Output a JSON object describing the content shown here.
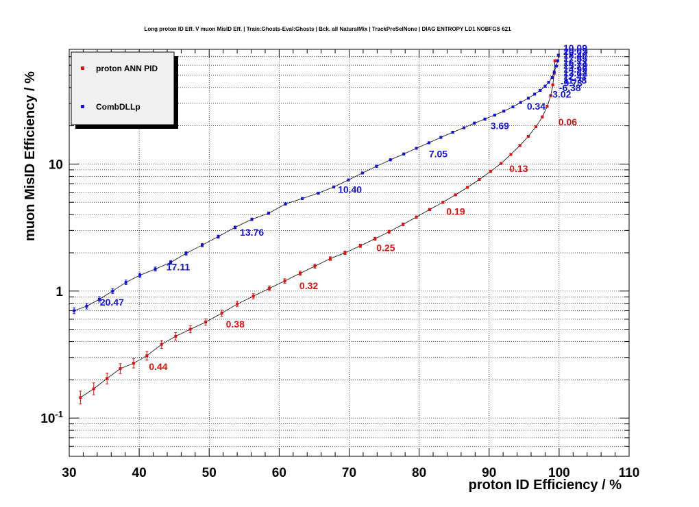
{
  "chart_data": {
    "type": "line",
    "title": "Long proton ID Eff. V muon MisID Eff. | Train:Ghosts-Eval:Ghosts | Bck. all NaturalMix | TrackPreSelNone | DIAG ENTROPY LD1 NOBFGS 621",
    "xlabel": "proton ID Efficiency / %",
    "ylabel": "muon MisID Efficiency / %",
    "xlim": [
      30,
      110
    ],
    "ylim": [
      0.05,
      80
    ],
    "y_scale": "log",
    "grid": true,
    "legend_position": "top-left",
    "x_ticks": [
      "30",
      "40",
      "50",
      "60",
      "70",
      "80",
      "90",
      "100",
      "110"
    ],
    "y_ticks": [
      {
        "value": 0.1,
        "base": "10",
        "exp": "-1"
      },
      {
        "value": 1,
        "base": "1",
        "exp": ""
      },
      {
        "value": 10,
        "base": "10",
        "exp": ""
      }
    ],
    "series": [
      {
        "name": "proton ANN PID",
        "color": "#e01010",
        "points": [
          [
            31.6,
            0.145
          ],
          [
            33.5,
            0.17
          ],
          [
            35.4,
            0.205
          ],
          [
            37.3,
            0.245
          ],
          [
            39.2,
            0.27
          ],
          [
            41.1,
            0.31
          ],
          [
            43.2,
            0.38
          ],
          [
            45.2,
            0.44
          ],
          [
            47.3,
            0.5
          ],
          [
            49.5,
            0.57
          ],
          [
            51.8,
            0.67
          ],
          [
            54.0,
            0.79
          ],
          [
            56.3,
            0.91
          ],
          [
            58.6,
            1.05
          ],
          [
            60.8,
            1.2
          ],
          [
            63.0,
            1.38
          ],
          [
            65.1,
            1.57
          ],
          [
            67.3,
            1.8
          ],
          [
            69.4,
            2.0
          ],
          [
            71.6,
            2.27
          ],
          [
            73.7,
            2.58
          ],
          [
            75.7,
            2.93
          ],
          [
            77.7,
            3.35
          ],
          [
            79.6,
            3.82
          ],
          [
            81.5,
            4.38
          ],
          [
            83.4,
            5.0
          ],
          [
            85.2,
            5.72
          ],
          [
            86.9,
            6.55
          ],
          [
            88.6,
            7.55
          ],
          [
            90.2,
            8.75
          ],
          [
            91.7,
            10.1
          ],
          [
            93.1,
            11.9
          ],
          [
            94.4,
            14.0
          ],
          [
            95.6,
            16.5
          ],
          [
            96.7,
            19.7
          ],
          [
            97.6,
            23.5
          ],
          [
            98.3,
            28.5
          ],
          [
            98.8,
            34.5
          ],
          [
            99.1,
            42.0
          ],
          [
            99.3,
            52.0
          ],
          [
            99.4,
            65.0
          ]
        ]
      },
      {
        "name": "CombDLLp",
        "color": "#1010e0",
        "points": [
          [
            30.7,
            0.7
          ],
          [
            32.5,
            0.76
          ],
          [
            34.3,
            0.86
          ],
          [
            36.2,
            1.0
          ],
          [
            38.1,
            1.17
          ],
          [
            40.1,
            1.33
          ],
          [
            42.3,
            1.49
          ],
          [
            44.5,
            1.68
          ],
          [
            46.7,
            1.98
          ],
          [
            49.0,
            2.3
          ],
          [
            51.3,
            2.68
          ],
          [
            53.7,
            3.17
          ],
          [
            56.1,
            3.67
          ],
          [
            58.5,
            4.1
          ],
          [
            60.9,
            4.85
          ],
          [
            63.3,
            5.35
          ],
          [
            65.6,
            5.9
          ],
          [
            67.8,
            6.6
          ],
          [
            69.9,
            7.5
          ],
          [
            71.9,
            8.5
          ],
          [
            73.9,
            9.6
          ],
          [
            75.9,
            10.8
          ],
          [
            77.8,
            12.0
          ],
          [
            79.6,
            13.3
          ],
          [
            81.4,
            14.7
          ],
          [
            83.1,
            16.2
          ],
          [
            84.8,
            17.8
          ],
          [
            86.4,
            19.3
          ],
          [
            87.9,
            21.0
          ],
          [
            89.4,
            22.6
          ],
          [
            90.8,
            24.3
          ],
          [
            92.1,
            26.1
          ],
          [
            93.4,
            28.2
          ],
          [
            94.5,
            30.5
          ],
          [
            95.6,
            33.0
          ],
          [
            96.5,
            35.5
          ],
          [
            97.3,
            38.0
          ],
          [
            98.0,
            41.0
          ],
          [
            98.5,
            44.0
          ],
          [
            99.0,
            48.0
          ],
          [
            99.3,
            53.0
          ],
          [
            99.6,
            59.0
          ],
          [
            99.8,
            65.0
          ],
          [
            99.9,
            72.0
          ]
        ]
      }
    ],
    "annotations": [
      {
        "series": 0,
        "text": "0.06",
        "x": 99.5,
        "y": 21.5
      },
      {
        "series": 0,
        "text": "0.13",
        "x": 92.5,
        "y": 9.2
      },
      {
        "series": 0,
        "text": "0.19",
        "x": 83.5,
        "y": 4.25
      },
      {
        "series": 0,
        "text": "0.25",
        "x": 73.5,
        "y": 2.2
      },
      {
        "series": 0,
        "text": "0.32",
        "x": 62.5,
        "y": 1.1
      },
      {
        "series": 0,
        "text": "0.38",
        "x": 52.0,
        "y": 0.55
      },
      {
        "series": 0,
        "text": "0.44",
        "x": 41.0,
        "y": 0.255
      },
      {
        "series": 1,
        "text": "0.34",
        "x": 95.0,
        "y": 28.5
      },
      {
        "series": 1,
        "text": "3.69",
        "x": 89.8,
        "y": 20.0
      },
      {
        "series": 1,
        "text": "7.05",
        "x": 81.0,
        "y": 12.0
      },
      {
        "series": 1,
        "text": "10.40",
        "x": 68.0,
        "y": 6.3
      },
      {
        "series": 1,
        "text": "13.76",
        "x": 54.0,
        "y": 2.9
      },
      {
        "series": 1,
        "text": "17.11",
        "x": 43.5,
        "y": 1.55
      },
      {
        "series": 1,
        "text": "20.47",
        "x": 34.0,
        "y": 0.82
      },
      {
        "series": 1,
        "text": "-3.02",
        "x": 98.2,
        "y": 35.5
      },
      {
        "series": 1,
        "text": "-6.38",
        "x": 99.6,
        "y": 40.0
      },
      {
        "series": 1,
        "text": "-9.73",
        "x": 99.8,
        "y": 43.5
      }
    ],
    "clutter_labels": [
      "10.09",
      "20.03",
      "18.40",
      "17.55",
      "16.73",
      "15.79",
      "14.99",
      "13.62",
      "12.47",
      "11.78"
    ]
  }
}
